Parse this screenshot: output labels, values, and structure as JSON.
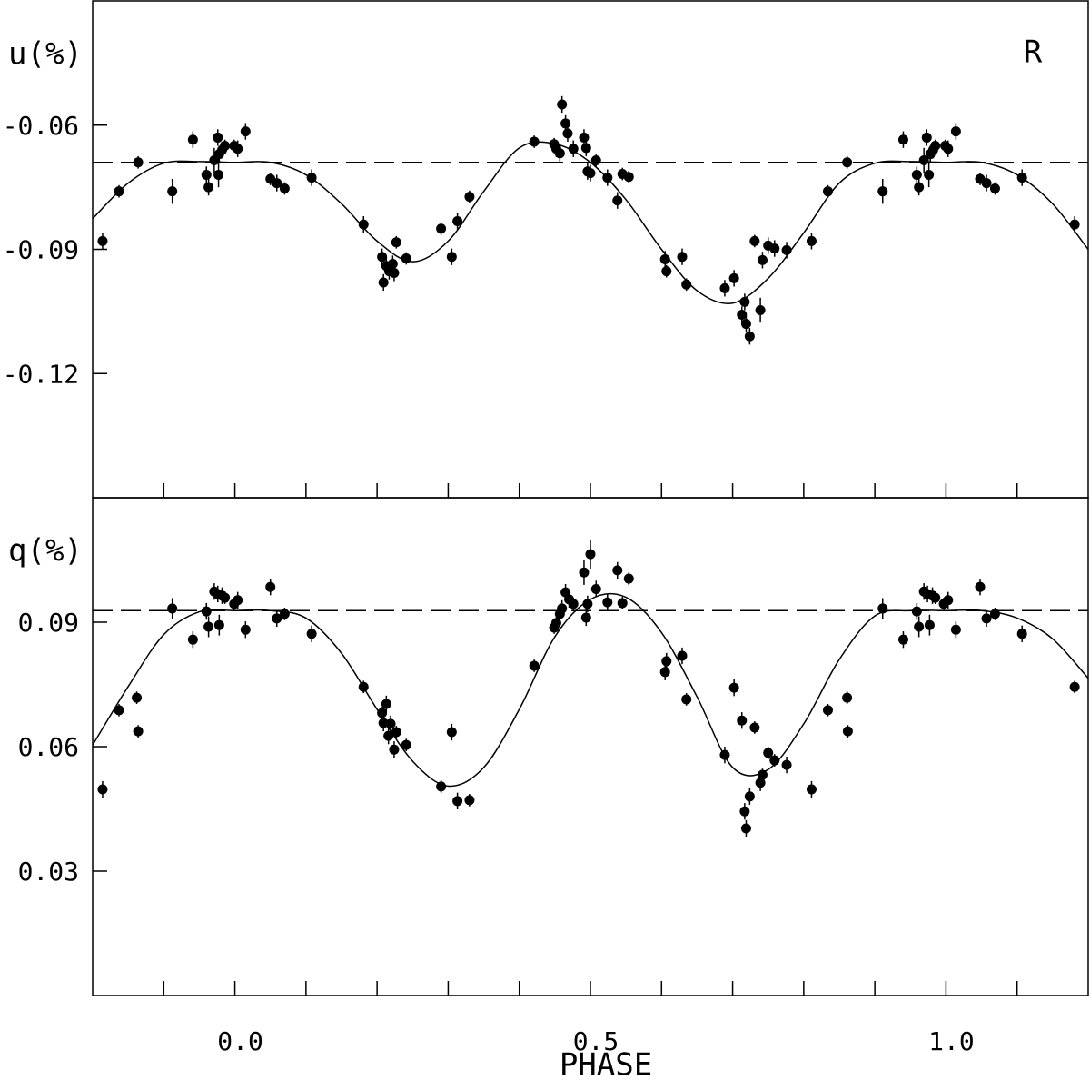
{
  "chart_data": [
    {
      "type": "scatter",
      "ylabel": "u(%)",
      "annotation": "R",
      "xlim": [
        -0.2,
        1.2
      ],
      "ylim": [
        -0.15,
        -0.03
      ],
      "yticks": [
        -0.06,
        -0.09,
        -0.12
      ],
      "xminorticks": [
        -0.1,
        0,
        0.1,
        0.2,
        0.3,
        0.4,
        0.5,
        0.6,
        0.7,
        0.8,
        0.9,
        1.0,
        1.1
      ],
      "reference": -0.069,
      "color": "#000000",
      "x": [
        -0.186,
        -0.163,
        -0.136,
        -0.088,
        -0.059,
        -0.04,
        -0.037,
        -0.029,
        -0.024,
        -0.023,
        -0.022,
        -0.018,
        -0.014,
        -0.001,
        0.004,
        0.015,
        0.05,
        0.059,
        0.07,
        0.108,
        0.181,
        0.207,
        0.209,
        0.213,
        0.217,
        0.222,
        0.224,
        0.227,
        0.241,
        0.29,
        0.305,
        0.313,
        0.33,
        0.421,
        0.449,
        0.452,
        0.457,
        0.46,
        0.465,
        0.468,
        0.476,
        0.491,
        0.494,
        0.496,
        0.5,
        0.508,
        0.524,
        0.538,
        0.545,
        0.554,
        0.605,
        0.607,
        0.629,
        0.635,
        0.689,
        0.702,
        0.713,
        0.717,
        0.719,
        0.724,
        0.731,
        0.739,
        0.742,
        0.75,
        0.759,
        0.776,
        0.811,
        0.834,
        0.861,
        0.911,
        0.94,
        0.959,
        0.962,
        0.969,
        0.973,
        0.976,
        0.978,
        0.982,
        0.985,
        0.999,
        1.003,
        1.014,
        1.048,
        1.057,
        1.069,
        1.107,
        1.181
      ],
      "values": [
        -0.088,
        -0.076,
        -0.069,
        -0.076,
        -0.0635,
        -0.072,
        -0.075,
        -0.0685,
        -0.063,
        -0.072,
        -0.067,
        -0.066,
        -0.065,
        -0.065,
        -0.0657,
        -0.0615,
        -0.073,
        -0.074,
        -0.0753,
        -0.0727,
        -0.084,
        -0.0918,
        -0.098,
        -0.094,
        -0.0953,
        -0.0935,
        -0.0957,
        -0.0883,
        -0.0922,
        -0.085,
        -0.0918,
        -0.0832,
        -0.0773,
        -0.064,
        -0.0646,
        -0.0657,
        -0.0668,
        -0.055,
        -0.0596,
        -0.062,
        -0.0657,
        -0.063,
        -0.0655,
        -0.0712,
        -0.0716,
        -0.0685,
        -0.0727,
        -0.0782,
        -0.0718,
        -0.0725,
        -0.0924,
        -0.0953,
        -0.0918,
        -0.0985,
        -0.0994,
        -0.097,
        -0.1058,
        -0.1027,
        -0.108,
        -0.111,
        -0.088,
        -0.1047,
        -0.0926,
        -0.0891,
        -0.0898,
        -0.0902,
        -0.088,
        -0.076,
        -0.069,
        -0.076,
        -0.0635,
        -0.072,
        -0.075,
        -0.0685,
        -0.063,
        -0.072,
        -0.067,
        -0.066,
        -0.065,
        -0.065,
        -0.0657,
        -0.0615,
        -0.073,
        -0.074,
        -0.0753,
        -0.0727,
        -0.084
      ],
      "errors": [
        0.002,
        0.0015,
        0.0015,
        0.003,
        0.002,
        0.002,
        0.002,
        0.003,
        0.002,
        0.003,
        0.002,
        0.002,
        0.0015,
        0.0015,
        0.002,
        0.002,
        0.0015,
        0.002,
        0.0015,
        0.002,
        0.002,
        0.002,
        0.002,
        0.002,
        0.002,
        0.002,
        0.002,
        0.0015,
        0.0015,
        0.0015,
        0.002,
        0.002,
        0.0015,
        0.0015,
        0.0015,
        0.002,
        0.002,
        0.002,
        0.002,
        0.002,
        0.002,
        0.002,
        0.002,
        0.002,
        0.002,
        0.0015,
        0.002,
        0.002,
        0.0015,
        0.0015,
        0.002,
        0.0015,
        0.002,
        0.0015,
        0.002,
        0.002,
        0.002,
        0.002,
        0.002,
        0.002,
        0.0015,
        0.003,
        0.002,
        0.002,
        0.002,
        0.002,
        0.002,
        0.0015,
        0.0015,
        0.003,
        0.002,
        0.002,
        0.002,
        0.003,
        0.002,
        0.003,
        0.002,
        0.002,
        0.0015,
        0.0015,
        0.002,
        0.002,
        0.0015,
        0.002,
        0.0015,
        0.002,
        0.002
      ],
      "model": {
        "x": [
          -0.2,
          -0.15,
          -0.1,
          -0.05,
          0,
          0.05,
          0.1,
          0.15,
          0.2,
          0.25,
          0.3,
          0.35,
          0.4,
          0.45,
          0.5,
          0.55,
          0.6,
          0.65,
          0.7,
          0.75,
          0.8,
          0.85,
          0.9,
          0.95,
          1.0,
          1.05,
          1.1,
          1.15,
          1.2
        ],
        "values": [
          -0.0826,
          -0.074,
          -0.0692,
          -0.0688,
          -0.069,
          -0.069,
          -0.072,
          -0.079,
          -0.088,
          -0.093,
          -0.088,
          -0.076,
          -0.0655,
          -0.0645,
          -0.069,
          -0.078,
          -0.09,
          -0.1,
          -0.103,
          -0.097,
          -0.086,
          -0.074,
          -0.0692,
          -0.0688,
          -0.069,
          -0.069,
          -0.072,
          -0.079,
          -0.09
        ]
      }
    },
    {
      "type": "scatter",
      "ylabel": "q(%)",
      "xlabel": "PHASE",
      "xlim": [
        -0.2,
        1.2
      ],
      "ylim": [
        0,
        0.12
      ],
      "yticks": [
        0.09,
        0.06,
        0.03
      ],
      "xticks": [
        {
          "value": 0,
          "label": "0.0"
        },
        0.5,
        {
          "value": 1,
          "label": "1.0"
        }
      ],
      "xminorticks": [
        -0.1,
        0,
        0.1,
        0.2,
        0.3,
        0.4,
        0.5,
        0.6,
        0.7,
        0.8,
        0.9,
        1.0,
        1.1
      ],
      "reference": 0.0928,
      "color": "#000000",
      "x": [
        -0.186,
        -0.163,
        -0.138,
        -0.136,
        -0.088,
        -0.059,
        -0.04,
        -0.037,
        -0.029,
        -0.024,
        -0.022,
        -0.018,
        -0.014,
        -0.001,
        0.004,
        0.015,
        0.05,
        0.059,
        0.07,
        0.108,
        0.181,
        0.207,
        0.209,
        0.213,
        0.216,
        0.219,
        0.224,
        0.227,
        0.241,
        0.29,
        0.305,
        0.313,
        0.33,
        0.421,
        0.449,
        0.452,
        0.457,
        0.46,
        0.465,
        0.47,
        0.476,
        0.491,
        0.494,
        0.496,
        0.5,
        0.508,
        0.524,
        0.538,
        0.545,
        0.554,
        0.605,
        0.607,
        0.629,
        0.635,
        0.689,
        0.702,
        0.713,
        0.717,
        0.719,
        0.724,
        0.731,
        0.739,
        0.742,
        0.75,
        0.759,
        0.776,
        0.811,
        0.834,
        0.861,
        0.862,
        0.911,
        0.94,
        0.959,
        0.962,
        0.969,
        0.974,
        0.977,
        0.981,
        0.985,
        0.997,
        1.003,
        1.014,
        1.048,
        1.057,
        1.069,
        1.107,
        1.181
      ],
      "values": [
        0.0497,
        0.0688,
        0.0718,
        0.0637,
        0.0933,
        0.0858,
        0.0926,
        0.0889,
        0.0974,
        0.0968,
        0.0893,
        0.0964,
        0.0959,
        0.0944,
        0.0953,
        0.0882,
        0.0985,
        0.0909,
        0.092,
        0.0872,
        0.0744,
        0.0681,
        0.0657,
        0.0703,
        0.0626,
        0.0655,
        0.0593,
        0.0635,
        0.0604,
        0.0504,
        0.0635,
        0.0469,
        0.0471,
        0.0795,
        0.0887,
        0.0898,
        0.092,
        0.0933,
        0.0972,
        0.0955,
        0.0944,
        0.102,
        0.0911,
        0.0944,
        0.1064,
        0.098,
        0.0948,
        0.1025,
        0.0946,
        0.1005,
        0.078,
        0.0806,
        0.0819,
        0.0714,
        0.058,
        0.0742,
        0.0663,
        0.0444,
        0.0403,
        0.048,
        0.0646,
        0.0513,
        0.0532,
        0.0585,
        0.0567,
        0.0556,
        0.0497,
        0.0688,
        0.0718,
        0.0637,
        0.0933,
        0.0858,
        0.0926,
        0.0889,
        0.0974,
        0.0968,
        0.0893,
        0.0964,
        0.0959,
        0.0944,
        0.0953,
        0.0882,
        0.0985,
        0.0909,
        0.092,
        0.0872,
        0.0744
      ],
      "errors": [
        0.002,
        0.0015,
        0.0015,
        0.0015,
        0.0025,
        0.002,
        0.002,
        0.0025,
        0.002,
        0.002,
        0.0025,
        0.002,
        0.0015,
        0.0015,
        0.002,
        0.002,
        0.002,
        0.002,
        0.0015,
        0.002,
        0.0015,
        0.0015,
        0.002,
        0.002,
        0.002,
        0.002,
        0.002,
        0.0015,
        0.0015,
        0.0015,
        0.002,
        0.002,
        0.0015,
        0.0015,
        0.0015,
        0.002,
        0.002,
        0.002,
        0.002,
        0.002,
        0.0015,
        0.003,
        0.002,
        0.002,
        0.0035,
        0.002,
        0.002,
        0.002,
        0.0015,
        0.0015,
        0.002,
        0.002,
        0.002,
        0.0015,
        0.002,
        0.002,
        0.002,
        0.002,
        0.002,
        0.002,
        0.0015,
        0.002,
        0.0015,
        0.0015,
        0.0015,
        0.002,
        0.002,
        0.0015,
        0.0015,
        0.0015,
        0.0025,
        0.002,
        0.002,
        0.0025,
        0.002,
        0.002,
        0.0025,
        0.002,
        0.0015,
        0.0015,
        0.002,
        0.002,
        0.002,
        0.002,
        0.0015,
        0.002,
        0.0015
      ],
      "model": {
        "x": [
          -0.2,
          -0.15,
          -0.1,
          -0.05,
          0,
          0.05,
          0.1,
          0.15,
          0.2,
          0.25,
          0.3,
          0.35,
          0.4,
          0.45,
          0.5,
          0.55,
          0.6,
          0.65,
          0.7,
          0.75,
          0.8,
          0.85,
          0.9,
          0.95,
          1.0,
          1.05,
          1.1,
          1.15,
          1.2
        ],
        "values": [
          0.0604,
          0.0745,
          0.087,
          0.0925,
          0.0928,
          0.0928,
          0.091,
          0.0825,
          0.069,
          0.0565,
          0.0505,
          0.055,
          0.069,
          0.0865,
          0.0955,
          0.096,
          0.0875,
          0.072,
          0.055,
          0.0545,
          0.0655,
          0.081,
          0.0915,
          0.0928,
          0.0928,
          0.0928,
          0.091,
          0.086,
          0.0765
        ]
      }
    }
  ]
}
